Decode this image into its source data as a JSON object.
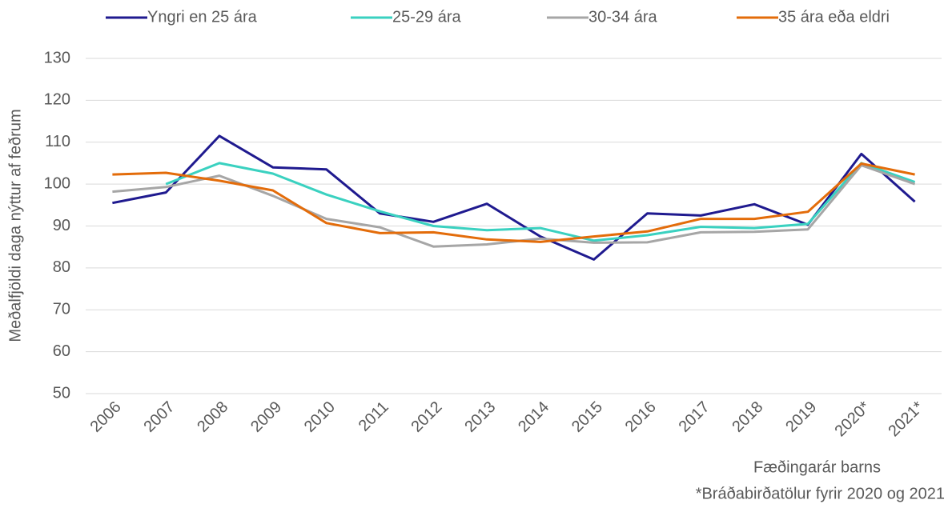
{
  "chart_data": {
    "type": "line",
    "y_label": "Meðalfjöldi daga nýttur af feðrum",
    "x_label": "Fæðingarár barns",
    "note": "*Bráðabirðatölur fyrir 2020 og 2021",
    "categories": [
      "2006",
      "2007",
      "2008",
      "2009",
      "2010",
      "2011",
      "2012",
      "2013",
      "2014",
      "2015",
      "2016",
      "2017",
      "2018",
      "2019",
      "2020*",
      "2021*"
    ],
    "series": [
      {
        "name": "Yngri en 25 ára",
        "color": "#1f1a8f",
        "values": [
          95.5,
          98,
          111.5,
          104,
          103.5,
          93,
          91,
          95.3,
          87.5,
          82,
          93,
          92.5,
          95.2,
          90.3,
          107.2,
          95.8
        ]
      },
      {
        "name": "25-29 ára",
        "color": "#3ad1c0",
        "values": [
          null,
          100,
          105,
          102.5,
          97.5,
          93.5,
          90,
          89,
          89.5,
          86.5,
          87.8,
          89.8,
          89.5,
          90.5,
          105,
          100.5
        ]
      },
      {
        "name": "30-34 ára",
        "color": "#a6a6a6",
        "values": [
          98.2,
          99.3,
          102,
          97.2,
          91.7,
          89.7,
          85.1,
          85.6,
          87,
          86,
          86.1,
          88.5,
          88.6,
          89.2,
          104.5,
          100
        ]
      },
      {
        "name": "35 ára eða eldri",
        "color": "#e36c0a",
        "values": [
          102.3,
          102.7,
          100.8,
          98.5,
          90.7,
          88.3,
          88.5,
          86.8,
          86.2,
          87.5,
          88.7,
          91.7,
          91.7,
          93.4,
          104.9,
          102.3
        ]
      }
    ],
    "ylim": [
      50,
      130
    ],
    "yticks": [
      50,
      60,
      70,
      80,
      90,
      100,
      110,
      120,
      130
    ],
    "grid": true,
    "legend": "top"
  }
}
